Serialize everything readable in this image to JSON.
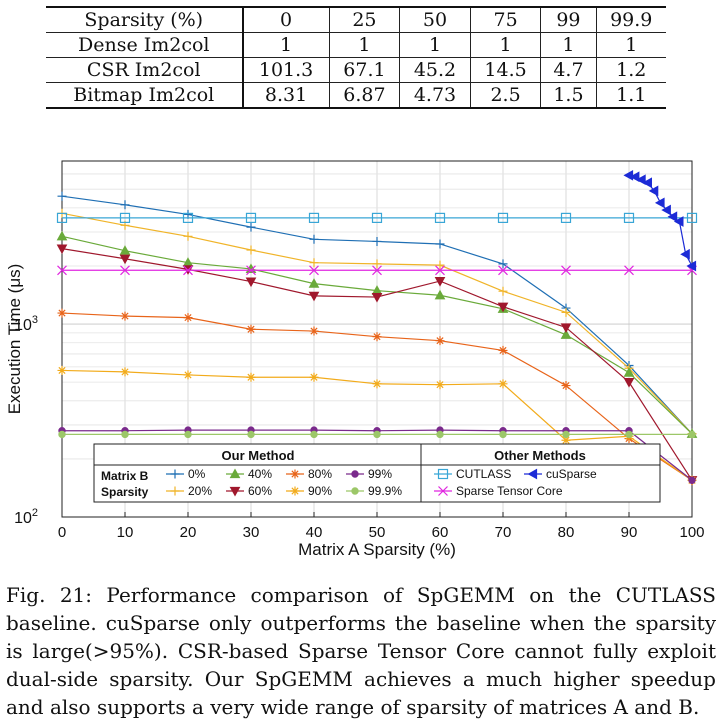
{
  "table": {
    "header": [
      "Sparsity (%)",
      "0",
      "25",
      "50",
      "75",
      "99",
      "99.9"
    ],
    "rows": [
      [
        "Dense Im2col",
        "1",
        "1",
        "1",
        "1",
        "1",
        "1"
      ],
      [
        "CSR Im2col",
        "101.3",
        "67.1",
        "45.2",
        "14.5",
        "4.7",
        "1.2"
      ],
      [
        "Bitmap Im2col",
        "8.31",
        "6.87",
        "4.73",
        "2.5",
        "1.5",
        "1.1"
      ]
    ]
  },
  "chart_data": {
    "type": "line",
    "xlabel": "Matrix A Sparsity (%)",
    "ylabel": "Execution Time (μs)",
    "yscale": "log",
    "xlim": [
      0,
      100
    ],
    "ylim": [
      100,
      7000
    ],
    "xticks": [
      0,
      10,
      20,
      30,
      40,
      50,
      60,
      70,
      80,
      90,
      100
    ],
    "yticks": [
      {
        "value": 100,
        "base": "10",
        "exp": "2"
      },
      {
        "value": 1000,
        "base": "10",
        "exp": "3"
      }
    ],
    "grid": true,
    "x": [
      0,
      10,
      20,
      30,
      40,
      50,
      60,
      70,
      80,
      90,
      100
    ],
    "legend": {
      "placement": "bottom",
      "our_title": "Our Method",
      "other_title": "Other Methods",
      "group_label_1": "Matrix B",
      "group_label_2": "Sparsity"
    },
    "series": [
      {
        "name": "0%",
        "color": "#1f6fb4",
        "marker": "plus",
        "values": [
          4600,
          4150,
          3700,
          3180,
          2750,
          2680,
          2600,
          2050,
          1210,
          610,
          270
        ]
      },
      {
        "name": "20%",
        "color": "#f0b429",
        "marker": "plus",
        "values": [
          3750,
          3250,
          2850,
          2420,
          2080,
          2050,
          2020,
          1480,
          1150,
          590,
          270
        ]
      },
      {
        "name": "40%",
        "color": "#6aaa3a",
        "marker": "tri_up",
        "values": [
          2850,
          2400,
          2080,
          1930,
          1620,
          1490,
          1410,
          1200,
          880,
          560,
          270
        ]
      },
      {
        "name": "60%",
        "color": "#a0182d",
        "marker": "tri_down",
        "values": [
          2460,
          2180,
          1920,
          1660,
          1400,
          1380,
          1670,
          1230,
          960,
          500,
          155
        ]
      },
      {
        "name": "80%",
        "color": "#e8641a",
        "marker": "star",
        "values": [
          1140,
          1100,
          1080,
          940,
          920,
          860,
          820,
          730,
          480,
          255,
          155
        ]
      },
      {
        "name": "90%",
        "color": "#f2ab1b",
        "marker": "star",
        "values": [
          575,
          565,
          545,
          530,
          530,
          490,
          485,
          490,
          250,
          262,
          155
        ]
      },
      {
        "name": "99%",
        "color": "#7a2a8c",
        "marker": "circle",
        "values": [
          280,
          280,
          282,
          282,
          282,
          280,
          282,
          280,
          280,
          280,
          155
        ]
      },
      {
        "name": "99.9%",
        "color": "#9cc768",
        "marker": "circle",
        "values": [
          268,
          268,
          268,
          268,
          268,
          268,
          268,
          268,
          268,
          268,
          268
        ]
      },
      {
        "name": "CUTLASS",
        "color": "#39a6d6",
        "marker": "square",
        "values": [
          3550,
          3550,
          3550,
          3550,
          3550,
          3550,
          3550,
          3550,
          3550,
          3550,
          3550
        ]
      },
      {
        "name": "Sparse Tensor Core",
        "color": "#e026e0",
        "marker": "x",
        "values": [
          1900,
          1900,
          1900,
          1900,
          1900,
          1900,
          1900,
          1900,
          1900,
          1900,
          1900
        ]
      },
      {
        "name": "cuSparse",
        "color": "#1c2bd6",
        "marker": "tri_left",
        "x": [
          90,
          91,
          92,
          93,
          94,
          95,
          96,
          97,
          98,
          99,
          100
        ],
        "values": [
          5900,
          5800,
          5600,
          5400,
          4900,
          4250,
          3900,
          3600,
          3400,
          2300,
          2000
        ]
      }
    ]
  },
  "caption": "Fig. 21: Performance comparison of SpGEMM on the CUTLASS baseline. cuSparse only outperforms the baseline when the sparsity is large(>95%). CSR-based Sparse Tensor Core cannot fully exploit dual-side sparsity. Our SpGEMM achieves a much higher speedup and also supports a very wide range of sparsity of matrices A and B."
}
